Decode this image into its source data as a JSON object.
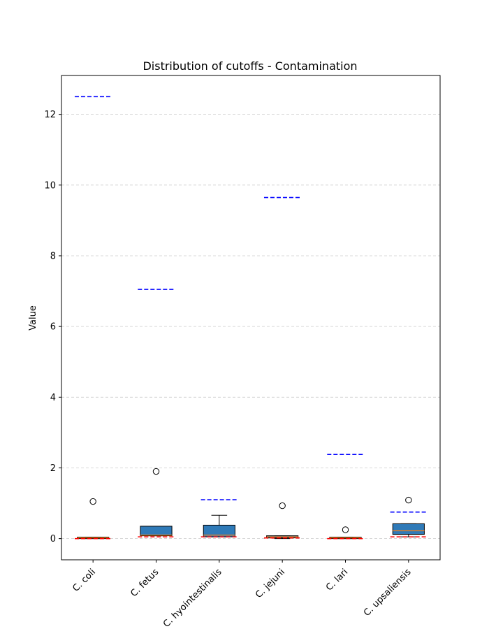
{
  "chart_data": {
    "type": "box",
    "title": "Distribution of cutoffs - Contamination",
    "xlabel": "",
    "ylabel": "Value",
    "ylim": [
      -0.6,
      13.1
    ],
    "yticks": [
      0,
      2,
      4,
      6,
      8,
      10,
      12
    ],
    "grid": "y-dashed",
    "categories": [
      "C. coli",
      "C. fetus",
      "C. hyointestinalis",
      "C. jejuni",
      "C. lari",
      "C. upsaliensis"
    ],
    "boxes": [
      {
        "category": "C. coli",
        "whisker_low": 0.0,
        "q1": 0.0,
        "median": 0.02,
        "q3": 0.04,
        "whisker_high": 0.04,
        "outliers": [
          1.05
        ]
      },
      {
        "category": "C. fetus",
        "whisker_low": 0.08,
        "q1": 0.08,
        "median": 0.1,
        "q3": 0.35,
        "whisker_high": 0.35,
        "outliers": [
          1.9
        ]
      },
      {
        "category": "C. hyointestinalis",
        "whisker_low": 0.05,
        "q1": 0.05,
        "median": 0.1,
        "q3": 0.38,
        "whisker_high": 0.66,
        "outliers": []
      },
      {
        "category": "C. jejuni",
        "whisker_low": 0.0,
        "q1": 0.02,
        "median": 0.05,
        "q3": 0.08,
        "whisker_high": 0.08,
        "outliers": [
          0.93
        ]
      },
      {
        "category": "C. lari",
        "whisker_low": 0.0,
        "q1": 0.0,
        "median": 0.02,
        "q3": 0.04,
        "whisker_high": 0.04,
        "outliers": [
          0.25
        ]
      },
      {
        "category": "C. upsaliensis",
        "whisker_low": 0.05,
        "q1": 0.12,
        "median": 0.22,
        "q3": 0.42,
        "whisker_high": 0.42,
        "outliers": [
          1.09
        ]
      }
    ],
    "upper_cutoffs": [
      12.5,
      7.05,
      1.1,
      9.65,
      2.38,
      0.75
    ],
    "lower_cutoffs": [
      0.0,
      0.05,
      0.05,
      0.02,
      0.0,
      0.05
    ],
    "colors": {
      "box_fill": "#2f7ab8",
      "median": "#ff7f0e",
      "upper_cutoff": "#0000ff",
      "lower_cutoff": "#ff0000",
      "grid": "#cccccc"
    }
  }
}
